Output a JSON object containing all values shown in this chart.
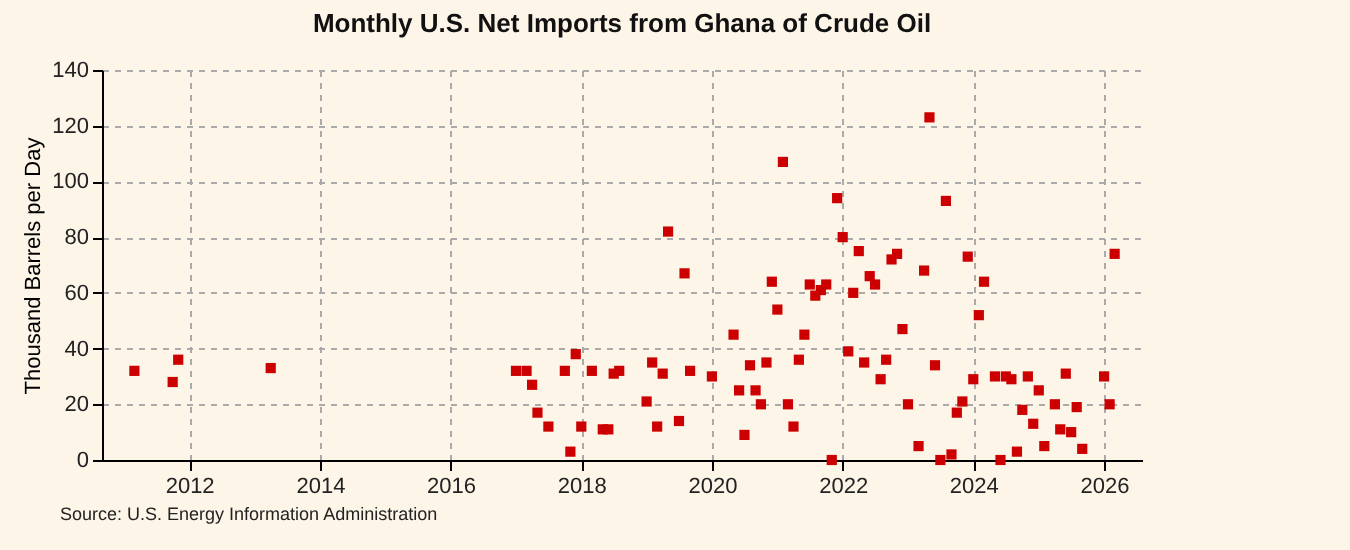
{
  "chart_data": {
    "type": "scatter",
    "title": "Monthly U.S. Net Imports from Ghana of Crude Oil",
    "ylabel": "Thousand Barrels per Day",
    "annotations": [
      "Source: U.S. Energy Information Administration"
    ],
    "x": [
      "2011-03",
      "2011-10",
      "2011-11",
      "2013-04",
      "2017-01",
      "2017-03",
      "2017-04",
      "2017-05",
      "2017-07",
      "2017-10",
      "2017-11",
      "2017-12",
      "2018-01",
      "2018-03",
      "2018-05",
      "2018-06",
      "2018-07",
      "2018-08",
      "2019-01",
      "2019-02",
      "2019-03",
      "2019-04",
      "2019-05",
      "2019-07",
      "2019-08",
      "2019-09",
      "2020-01",
      "2020-05",
      "2020-06",
      "2020-07",
      "2020-08",
      "2020-09",
      "2020-10",
      "2020-11",
      "2020-12",
      "2021-01",
      "2021-02",
      "2021-03",
      "2021-04",
      "2021-05",
      "2021-06",
      "2021-07",
      "2021-08",
      "2021-09",
      "2021-10",
      "2021-11",
      "2021-12",
      "2022-01",
      "2022-02",
      "2022-03",
      "2022-04",
      "2022-05",
      "2022-06",
      "2022-07",
      "2022-08",
      "2022-09",
      "2022-10",
      "2022-11",
      "2022-12",
      "2023-01",
      "2023-03",
      "2023-04",
      "2023-05",
      "2023-06",
      "2023-07",
      "2023-08",
      "2023-09",
      "2023-10",
      "2023-11",
      "2023-12",
      "2024-01",
      "2024-02",
      "2024-03",
      "2024-05",
      "2024-06",
      "2024-07",
      "2024-08",
      "2024-09",
      "2024-10",
      "2024-11",
      "2024-12",
      "2025-01",
      "2025-02",
      "2025-04",
      "2025-05",
      "2025-06",
      "2025-07",
      "2025-08",
      "2025-09",
      "2026-01",
      "2026-02",
      "2026-03"
    ],
    "series": [
      {
        "color": "#cc0000",
        "values": [
          32,
          28,
          36,
          33,
          32,
          32,
          27,
          17,
          12,
          32,
          3,
          38,
          12,
          32,
          11,
          11,
          31,
          32,
          21,
          35,
          12,
          31,
          82,
          14,
          67,
          32,
          30,
          45,
          25,
          9,
          34,
          25,
          20,
          35,
          64,
          54,
          107,
          20,
          12,
          36,
          45,
          63,
          59,
          61,
          63,
          0,
          94,
          80,
          39,
          60,
          75,
          35,
          66,
          63,
          29,
          36,
          72,
          74,
          47,
          20,
          5,
          68,
          123,
          34,
          0,
          93,
          2,
          17,
          21,
          73,
          29,
          52,
          64,
          30,
          0,
          30,
          29,
          3,
          18,
          30,
          13,
          25,
          5,
          20,
          11,
          31,
          10,
          19,
          4,
          30,
          20,
          74
        ]
      }
    ],
    "xlim": [
      "2010-09",
      "2026-08"
    ],
    "xticks": [
      "2012",
      "2014",
      "2016",
      "2018",
      "2020",
      "2022",
      "2024",
      "2026"
    ],
    "ylim": [
      0,
      140
    ],
    "yticks": [
      0,
      20,
      40,
      60,
      80,
      100,
      120,
      140
    ],
    "grid": true,
    "marker": "square"
  }
}
